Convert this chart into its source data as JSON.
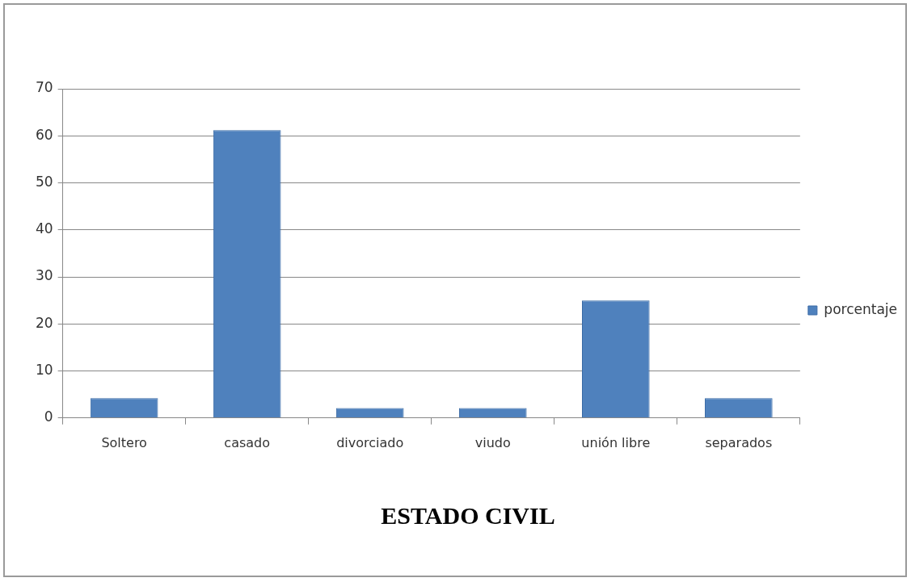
{
  "chart_data": {
    "type": "bar",
    "title": "ESTADO CIVIL",
    "categories": [
      "Soltero",
      "casado",
      "divorciado",
      "viudo",
      "unión libre",
      "separados"
    ],
    "series": [
      {
        "name": "porcentaje",
        "color": "#4f81bd",
        "values": [
          4.2,
          61.2,
          2.1,
          2.1,
          25,
          4.2
        ]
      }
    ],
    "ylim": [
      0,
      70
    ],
    "yticks": [
      0,
      10,
      20,
      30,
      40,
      50,
      60,
      70
    ],
    "grid": "y",
    "legend": "right"
  }
}
